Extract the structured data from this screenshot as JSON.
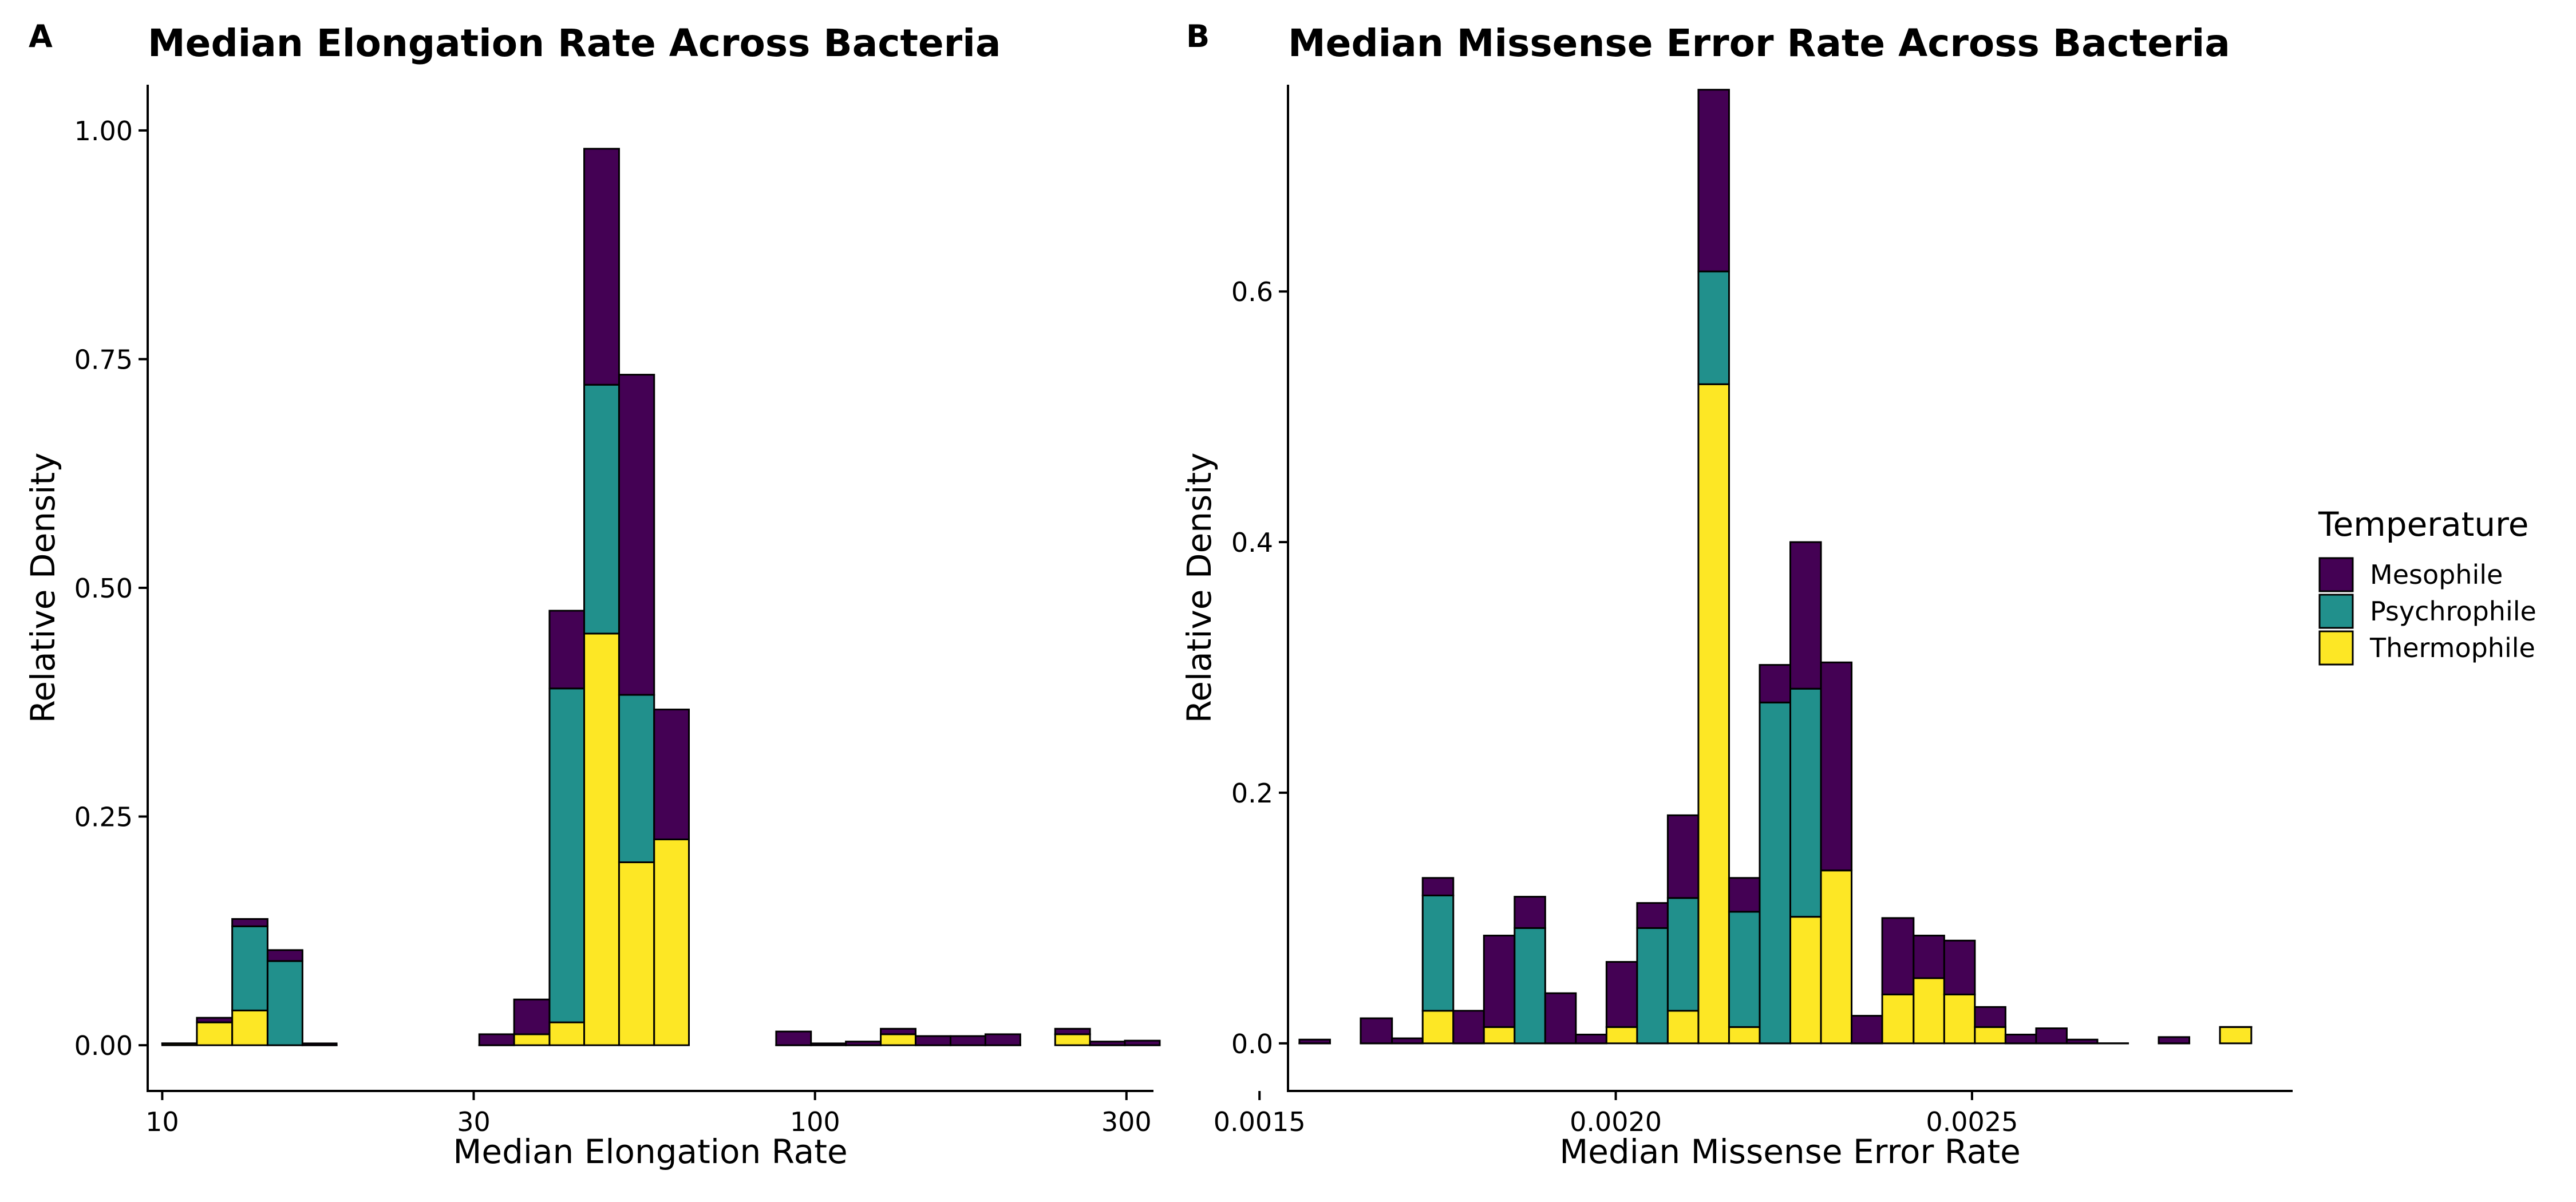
{
  "panels": [
    {
      "tag": "A",
      "chart_data": {
        "type": "bar",
        "stacked": true,
        "title": "Median Elongation Rate Across Bacteria",
        "xlabel": "Median Elongation Rate",
        "ylabel": "Relative Density",
        "x_scale": "log10",
        "xlim": [
          9.5,
          330
        ],
        "ylim": [
          -0.05,
          1.05
        ],
        "x_ticks": [
          10,
          30,
          100,
          300
        ],
        "x_tick_labels": [
          "10",
          "30",
          "100",
          "300"
        ],
        "y_ticks": [
          0,
          0.25,
          0.5,
          0.75,
          1.0
        ],
        "y_tick_labels": [
          "0.00",
          "0.25",
          "0.50",
          "0.75",
          "1.00"
        ],
        "grid": false,
        "bins": [
          [
            10.0,
            11.3
          ],
          [
            11.3,
            12.8
          ],
          [
            12.8,
            14.5
          ],
          [
            14.5,
            16.4
          ],
          [
            16.4,
            18.5
          ],
          [
            30.6,
            34.6
          ],
          [
            34.6,
            39.2
          ],
          [
            39.2,
            44.3
          ],
          [
            44.3,
            50.1
          ],
          [
            50.1,
            56.7
          ],
          [
            56.7,
            64.1
          ],
          [
            87.2,
            98.6
          ],
          [
            98.6,
            111.5
          ],
          [
            111.5,
            126.1
          ],
          [
            126.1,
            142.6
          ],
          [
            142.6,
            161.3
          ],
          [
            161.3,
            182.4
          ],
          [
            182.4,
            206.3
          ],
          [
            233.3,
            263.8
          ],
          [
            263.8,
            298.3
          ],
          [
            298.3,
            337.4
          ]
        ],
        "series": [
          {
            "name": "Thermophile",
            "values": [
              0.002,
              0.025,
              0.038,
              0.0,
              0.0,
              0.0,
              0.012,
              0.025,
              0.45,
              0.2,
              0.225,
              0.0,
              0.0,
              0.0,
              0.012,
              0.0,
              0.0,
              0.0,
              0.012,
              0.0,
              0.0
            ]
          },
          {
            "name": "Psychrophile",
            "values": [
              0.0,
              0.0,
              0.092,
              0.092,
              0.0,
              0.0,
              0.0,
              0.365,
              0.272,
              0.183,
              0.0,
              0.0,
              0.0,
              0.0,
              0.0,
              0.0,
              0.0,
              0.0,
              0.0,
              0.0,
              0.0
            ]
          },
          {
            "name": "Mesophile",
            "values": [
              0.0,
              0.005,
              0.008,
              0.012,
              0.002,
              0.012,
              0.038,
              0.085,
              0.258,
              0.35,
              0.142,
              0.015,
              0.002,
              0.004,
              0.006,
              0.01,
              0.01,
              0.012,
              0.006,
              0.004,
              0.005
            ]
          }
        ]
      }
    },
    {
      "tag": "B",
      "chart_data": {
        "type": "bar",
        "stacked": true,
        "title": "Median Missense Error Rate Across Bacteria",
        "xlabel": "Median Missense Error Rate",
        "ylabel": "Relative Density",
        "xlim": [
          0.00154,
          0.00295
        ],
        "ylim": [
          -0.038,
          0.765
        ],
        "x_ticks": [
          0.0015,
          0.002,
          0.0025
        ],
        "x_tick_labels": [
          "0.0015",
          "0.0020",
          "0.0025"
        ],
        "y_ticks": [
          0,
          0.2,
          0.4,
          0.6
        ],
        "y_tick_labels": [
          "0.0",
          "0.2",
          "0.4",
          "0.6"
        ],
        "grid": false,
        "bins": [
          [
            0.001556,
            0.001599
          ],
          [
            0.001642,
            0.001686
          ],
          [
            0.001686,
            0.001729
          ],
          [
            0.001729,
            0.001772
          ],
          [
            0.001772,
            0.001815
          ],
          [
            0.001815,
            0.001858
          ],
          [
            0.001858,
            0.001901
          ],
          [
            0.001901,
            0.001944
          ],
          [
            0.001944,
            0.001987
          ],
          [
            0.001987,
            0.00203
          ],
          [
            0.00203,
            0.002073
          ],
          [
            0.002073,
            0.002116
          ],
          [
            0.002116,
            0.002159
          ],
          [
            0.002159,
            0.002202
          ],
          [
            0.002202,
            0.002245
          ],
          [
            0.002245,
            0.002288
          ],
          [
            0.002288,
            0.002331
          ],
          [
            0.002331,
            0.002374
          ],
          [
            0.002374,
            0.002418
          ],
          [
            0.002418,
            0.002461
          ],
          [
            0.002461,
            0.002504
          ],
          [
            0.002504,
            0.002547
          ],
          [
            0.002547,
            0.00259
          ],
          [
            0.00259,
            0.002633
          ],
          [
            0.002633,
            0.002676
          ],
          [
            0.002676,
            0.002719
          ],
          [
            0.002762,
            0.002805
          ],
          [
            0.002848,
            0.002892
          ]
        ],
        "series": [
          {
            "name": "Thermophile",
            "values": [
              0.0,
              0.0,
              0.0,
              0.026,
              0.0,
              0.013,
              0.0,
              0.0,
              0.0,
              0.013,
              0.0,
              0.026,
              0.526,
              0.013,
              0.0,
              0.101,
              0.138,
              0.0,
              0.039,
              0.052,
              0.039,
              0.013,
              0.0,
              0.0,
              0.0,
              0.0,
              0.0,
              0.013
            ]
          },
          {
            "name": "Psychrophile",
            "values": [
              0.0,
              0.0,
              0.0,
              0.092,
              0.0,
              0.0,
              0.092,
              0.0,
              0.0,
              0.0,
              0.092,
              0.09,
              0.09,
              0.092,
              0.272,
              0.182,
              0.0,
              0.0,
              0.0,
              0.0,
              0.0,
              0.0,
              0.0,
              0.0,
              0.0,
              0.0,
              0.0,
              0.0
            ]
          },
          {
            "name": "Mesophile",
            "values": [
              0.003,
              0.02,
              0.004,
              0.014,
              0.026,
              0.073,
              0.025,
              0.04,
              0.007,
              0.052,
              0.02,
              0.066,
              0.145,
              0.027,
              0.03,
              0.117,
              0.166,
              0.022,
              0.061,
              0.034,
              0.043,
              0.016,
              0.007,
              0.012,
              0.003,
              0.0,
              0.005,
              0.0
            ]
          }
        ]
      }
    }
  ],
  "legend": {
    "title": "Temperature",
    "entries": [
      {
        "label": "Mesophile",
        "color": "#440154"
      },
      {
        "label": "Psychrophile",
        "color": "#21908C"
      },
      {
        "label": "Thermophile",
        "color": "#FDE725"
      }
    ]
  }
}
